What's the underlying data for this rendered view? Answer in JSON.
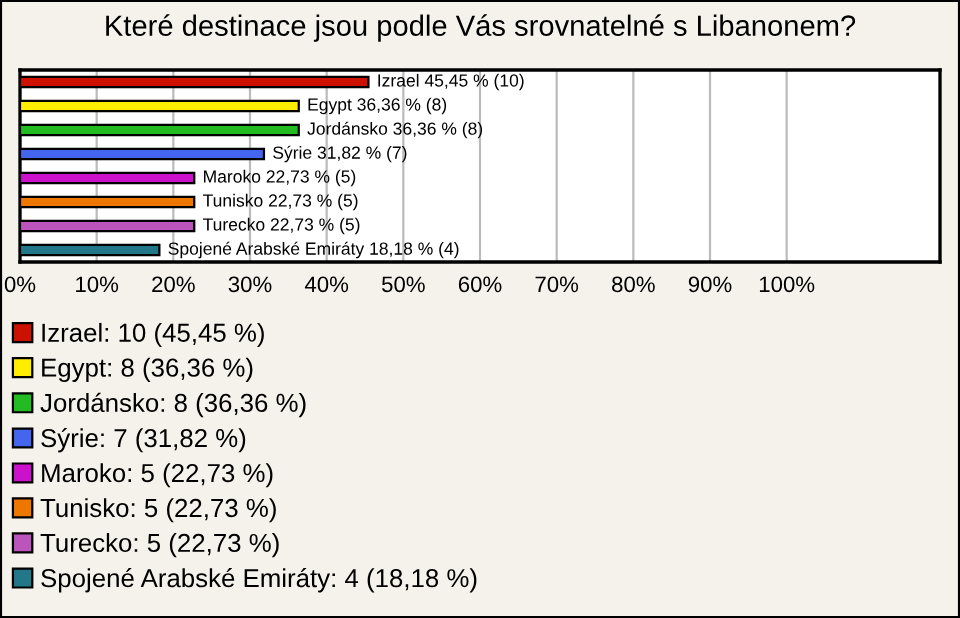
{
  "chart_data": {
    "type": "bar",
    "orientation": "horizontal",
    "title": "Které destinace jsou podle Vás srovnatelné s Libanonem?",
    "categories": [
      null,
      null,
      null,
      null,
      null,
      null,
      null,
      null
    ],
    "series": [
      {
        "name": "Izrael: 10 (45,45 %)",
        "color": "#cc1100",
        "values": [
          45.45,
          null,
          null,
          null,
          null,
          null,
          null,
          null
        ],
        "value_labels": [
          "Izrael 45,45 % (10)",
          null,
          null,
          null,
          null,
          null,
          null,
          null
        ]
      },
      {
        "name": "Egypt: 8 (36,36 %)",
        "color": "#ffee00",
        "values": [
          null,
          36.36,
          null,
          null,
          null,
          null,
          null,
          null
        ],
        "value_labels": [
          null,
          "Egypt 36,36 % (8)",
          null,
          null,
          null,
          null,
          null,
          null
        ]
      },
      {
        "name": "Jordánsko: 8 (36,36 %)",
        "color": "#22bb22",
        "values": [
          null,
          null,
          36.36,
          null,
          null,
          null,
          null,
          null
        ],
        "value_labels": [
          null,
          null,
          "Jordánsko 36,36 % (8)",
          null,
          null,
          null,
          null,
          null
        ]
      },
      {
        "name": "Sýrie: 7 (31,82 %)",
        "color": "#4466ee",
        "values": [
          null,
          null,
          null,
          31.82,
          null,
          null,
          null,
          null
        ],
        "value_labels": [
          null,
          null,
          null,
          "Sýrie 31,82 % (7)",
          null,
          null,
          null,
          null
        ]
      },
      {
        "name": "Maroko: 5 (22,73 %)",
        "color": "#cc11cc",
        "values": [
          null,
          null,
          null,
          null,
          22.73,
          null,
          null,
          null
        ],
        "value_labels": [
          null,
          null,
          null,
          null,
          "Maroko 22,73 % (5)",
          null,
          null,
          null
        ]
      },
      {
        "name": "Tunisko: 5 (22,73 %)",
        "color": "#ee7700",
        "values": [
          null,
          null,
          null,
          null,
          null,
          22.73,
          null,
          null
        ],
        "value_labels": [
          null,
          null,
          null,
          null,
          null,
          "Tunisko 22,73 % (5)",
          null,
          null
        ]
      },
      {
        "name": "Turecko: 5 (22,73 %)",
        "color": "#bb55bb",
        "values": [
          null,
          null,
          null,
          null,
          null,
          null,
          22.73,
          null
        ],
        "value_labels": [
          null,
          null,
          null,
          null,
          null,
          null,
          "Turecko 22,73 % (5)",
          null
        ]
      },
      {
        "name": "Spojené Arabské Emiráty: 4 (18,18 %)",
        "color": "#227788",
        "values": [
          null,
          null,
          null,
          null,
          null,
          null,
          null,
          18.18
        ],
        "value_labels": [
          null,
          null,
          null,
          null,
          null,
          null,
          null,
          "Spojené Arabské Emiráty 18,18 % (4)"
        ]
      }
    ],
    "legend": "bottom",
    "xlim": [
      0,
      120
    ],
    "xticks": [
      {
        "value": 0,
        "label": "0%"
      },
      {
        "value": 10,
        "label": "10%"
      },
      {
        "value": 20,
        "label": "20%"
      },
      {
        "value": 30,
        "label": "30%"
      },
      {
        "value": 40,
        "label": "40%"
      },
      {
        "value": 50,
        "label": "50%"
      },
      {
        "value": 60,
        "label": "60%"
      },
      {
        "value": 70,
        "label": "70%"
      },
      {
        "value": 80,
        "label": "80%"
      },
      {
        "value": 90,
        "label": "90%"
      },
      {
        "value": 100,
        "label": "100%"
      }
    ],
    "grid": "x"
  }
}
